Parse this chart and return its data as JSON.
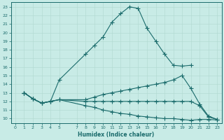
{
  "xlabel": "Humidex (Indice chaleur)",
  "xlim": [
    -0.5,
    23.5
  ],
  "ylim": [
    9.5,
    23.5
  ],
  "xticks": [
    0,
    1,
    2,
    3,
    4,
    5,
    7,
    8,
    9,
    10,
    11,
    12,
    13,
    14,
    15,
    16,
    17,
    18,
    19,
    20,
    21,
    22,
    23
  ],
  "yticks": [
    10,
    11,
    12,
    13,
    14,
    15,
    16,
    17,
    18,
    19,
    20,
    21,
    22,
    23
  ],
  "bg_color": "#c8ebe6",
  "line_color": "#1a6b6b",
  "grid_color": "#b0d8d0",
  "lines": [
    {
      "x": [
        1,
        2,
        3,
        4,
        5,
        8,
        9,
        10,
        11,
        12,
        13,
        14,
        15,
        16,
        17,
        18,
        19,
        20
      ],
      "y": [
        13,
        12.3,
        11.8,
        12.0,
        14.5,
        17.5,
        18.5,
        19.5,
        21.2,
        22.2,
        23.0,
        22.8,
        20.5,
        19.0,
        17.5,
        16.2,
        16.1,
        16.2
      ]
    },
    {
      "x": [
        1,
        2,
        3,
        4,
        5,
        8,
        9,
        10,
        11,
        12,
        13,
        14,
        15,
        16,
        17,
        18,
        19,
        20,
        21,
        22,
        23
      ],
      "y": [
        13,
        12.3,
        11.8,
        12.0,
        12.2,
        12.2,
        12.5,
        12.8,
        13.0,
        13.2,
        13.4,
        13.6,
        13.8,
        14.0,
        14.2,
        14.5,
        15.0,
        13.5,
        11.7,
        10.3,
        9.9
      ]
    },
    {
      "x": [
        1,
        2,
        3,
        4,
        5,
        8,
        9,
        10,
        11,
        12,
        13,
        14,
        15,
        16,
        17,
        18,
        19,
        20,
        21,
        22,
        23
      ],
      "y": [
        13,
        12.3,
        11.8,
        12.0,
        12.2,
        12.0,
        12.0,
        12.0,
        12.0,
        12.0,
        12.0,
        12.0,
        12.0,
        12.0,
        12.0,
        12.0,
        12.0,
        12.0,
        11.5,
        10.2,
        9.9
      ]
    },
    {
      "x": [
        1,
        2,
        3,
        4,
        5,
        8,
        9,
        10,
        11,
        12,
        13,
        14,
        15,
        16,
        17,
        18,
        19,
        20,
        21,
        22,
        23
      ],
      "y": [
        13,
        12.3,
        11.8,
        12.0,
        12.2,
        11.5,
        11.3,
        11.0,
        10.8,
        10.6,
        10.5,
        10.3,
        10.2,
        10.1,
        10.0,
        10.0,
        9.9,
        9.8,
        9.9,
        9.9,
        9.85
      ]
    }
  ],
  "marker": "+",
  "marker_size": 4.0,
  "line_width": 0.8
}
